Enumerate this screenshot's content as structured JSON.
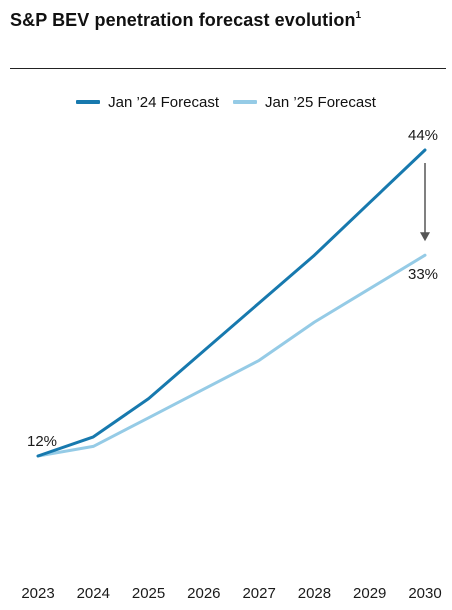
{
  "header": {
    "title": "S&P BEV penetration forecast evolution",
    "footnote_mark": "1"
  },
  "colors": {
    "jan24": "#1779AE",
    "jan25": "#95CBE6",
    "arrow": "#555555",
    "rule": "#222222"
  },
  "chart_data": {
    "type": "line",
    "title": "S&P BEV penetration forecast evolution",
    "x": [
      "2023",
      "2024",
      "2025",
      "2026",
      "2027",
      "2028",
      "2029",
      "2030"
    ],
    "series": [
      {
        "name": "Jan ’24 Forecast",
        "color": "#1779AE",
        "values": [
          12,
          14,
          18,
          23,
          28,
          33,
          38.5,
          44
        ]
      },
      {
        "name": "Jan ’25 Forecast",
        "color": "#95CBE6",
        "values": [
          12,
          13,
          16,
          19,
          22,
          26,
          29.5,
          33
        ]
      }
    ],
    "annotations": [
      {
        "label": "12%",
        "x": "2023",
        "value": 12,
        "placement": "above"
      },
      {
        "label": "44%",
        "x": "2030",
        "value": 44,
        "placement": "above"
      },
      {
        "label": "33%",
        "x": "2030",
        "value": 33,
        "placement": "below"
      }
    ],
    "arrow": {
      "x": "2030",
      "from": 44,
      "to": 33
    },
    "xlabel": "",
    "ylabel": "",
    "ylim": [
      0,
      44
    ],
    "grid": false,
    "legend_position": "top-center"
  }
}
